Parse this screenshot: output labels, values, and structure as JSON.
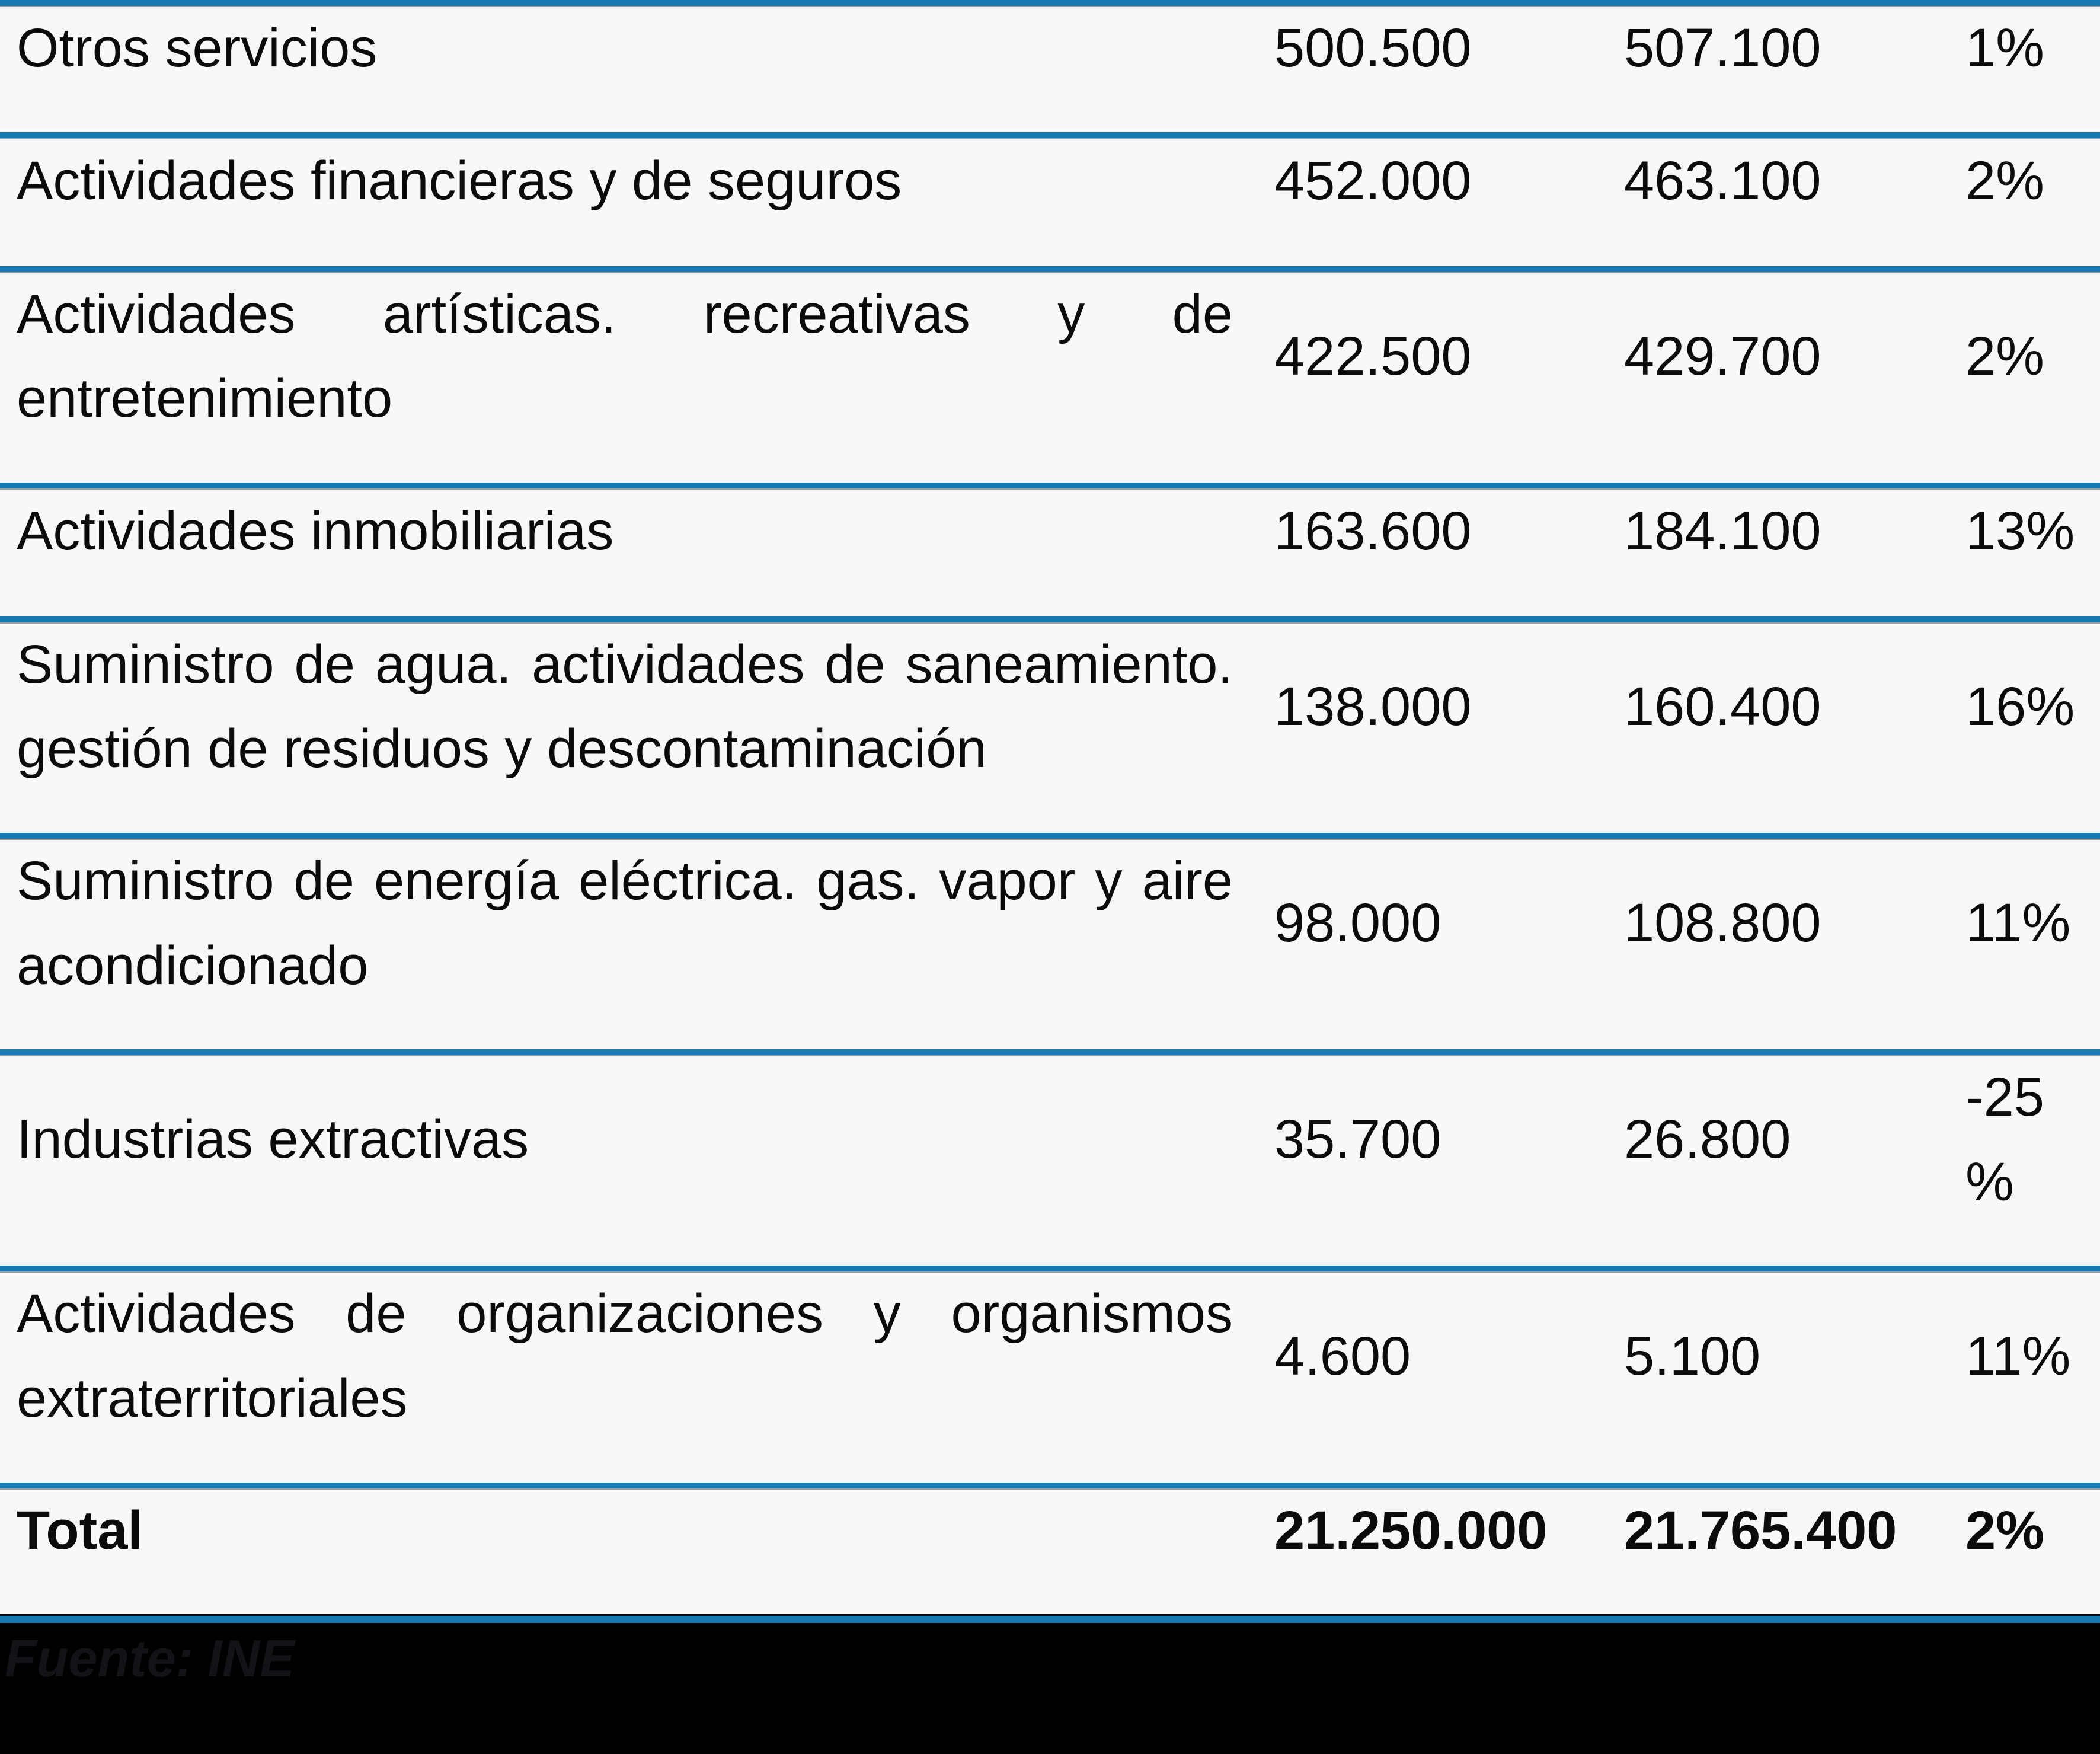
{
  "table": {
    "rows": [
      {
        "label": "Otros servicios",
        "value_a": "500.500",
        "value_b": "507.100",
        "change": "1%"
      },
      {
        "label": "Actividades financieras y de seguros",
        "value_a": "452.000",
        "value_b": "463.100",
        "change": "2%"
      },
      {
        "label": "Actividades artísticas. recreativas y de entretenimiento",
        "value_a": "422.500",
        "value_b": "429.700",
        "change": "2%"
      },
      {
        "label": "Actividades inmobiliarias",
        "value_a": "163.600",
        "value_b": "184.100",
        "change": "13%"
      },
      {
        "label": "Suministro de agua. actividades de saneamiento. gestión de residuos y descontaminación",
        "value_a": "138.000",
        "value_b": "160.400",
        "change": "16%"
      },
      {
        "label": "Suministro de energía eléctrica. gas. vapor y aire acondicionado",
        "value_a": "98.000",
        "value_b": "108.800",
        "change": "11%"
      },
      {
        "label": "Industrias extractivas",
        "value_a": "35.700",
        "value_b": "26.800",
        "change": "-25%"
      },
      {
        "label": "Actividades de organizaciones y organismos extraterritoriales",
        "value_a": "4.600",
        "value_b": "5.100",
        "change": "11%"
      }
    ],
    "total": {
      "label": "Total",
      "value_a": "21.250.000",
      "value_b": "21.765.400",
      "change": "2%"
    }
  },
  "footer": {
    "source": "Fuente: INE"
  },
  "colors": {
    "separator_blue": "#1879b4",
    "background": "#f8f8f9",
    "text": "#0b0b0d",
    "footer_bar": "#000000"
  },
  "chart_data": {
    "type": "table",
    "title": "",
    "categories": [
      "Otros servicios",
      "Actividades financieras y de seguros",
      "Actividades artísticas. recreativas y de entretenimiento",
      "Actividades inmobiliarias",
      "Suministro de agua. actividades de saneamiento. gestión de residuos y descontaminación",
      "Suministro de energía eléctrica. gas. vapor y aire acondicionado",
      "Industrias extractivas",
      "Actividades de organizaciones y organismos extraterritoriales",
      "Total"
    ],
    "series": [
      {
        "name": "value_a",
        "values": [
          500500,
          452000,
          422500,
          163600,
          138000,
          98000,
          35700,
          4600,
          21250000
        ]
      },
      {
        "name": "value_b",
        "values": [
          507100,
          463100,
          429700,
          184100,
          160400,
          108800,
          26800,
          5100,
          21765400
        ]
      },
      {
        "name": "change_pct",
        "values": [
          "1%",
          "2%",
          "2%",
          "13%",
          "16%",
          "11%",
          "-25%",
          "11%",
          "2%"
        ]
      }
    ]
  }
}
